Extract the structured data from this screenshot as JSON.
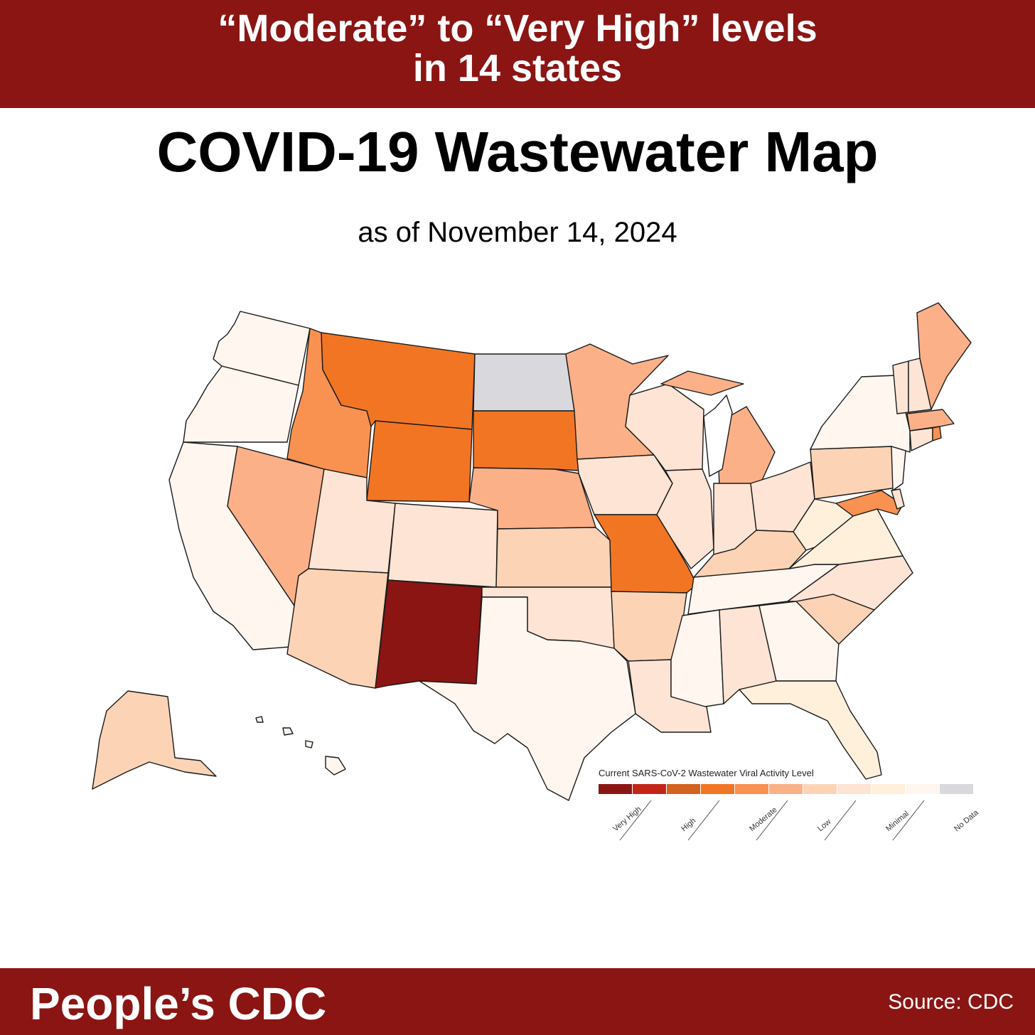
{
  "header": {
    "line1": "“Moderate” to “Very High” levels",
    "line2": "in 14 states"
  },
  "title": "COVID-19 Wastewater Map",
  "subtitle": "as of November 14, 2024",
  "legend": {
    "title": "Current SARS-CoV-2 Wastewater Viral Activity Level",
    "levels": [
      {
        "key": "very-high-1",
        "color": "#8b1513"
      },
      {
        "key": "very-high-2",
        "color": "#c42519"
      },
      {
        "key": "high-1",
        "color": "#d4621f"
      },
      {
        "key": "high-2",
        "color": "#f27524"
      },
      {
        "key": "moderate-1",
        "color": "#f99150"
      },
      {
        "key": "moderate-2",
        "color": "#fbb088"
      },
      {
        "key": "low-1",
        "color": "#fdd3b6"
      },
      {
        "key": "low-2",
        "color": "#fee4d4"
      },
      {
        "key": "minimal-1",
        "color": "#fff0db"
      },
      {
        "key": "minimal-2",
        "color": "#fff6ef"
      },
      {
        "key": "no-data",
        "color": "#d9d8dc"
      }
    ],
    "labels": [
      "Very High",
      "High",
      "Moderate",
      "Low",
      "Minimal",
      "No Data"
    ]
  },
  "states": {
    "WA": "minimal",
    "OR": "minimal",
    "CA": "minimal",
    "NV": "moderate-2",
    "ID": "moderate",
    "MT": "high",
    "WY": "high",
    "UT": "low-2",
    "AZ": "low",
    "CO": "low-2",
    "NM": "very-high",
    "ND": "no-data",
    "SD": "high",
    "NE": "moderate-2",
    "KS": "low",
    "OK": "low-2",
    "TX": "minimal",
    "MN": "moderate-2",
    "IA": "low-2",
    "MO": "high-2",
    "AR": "low",
    "LA": "low-2",
    "WI": "low-2",
    "IL": "low-2",
    "MI": "moderate-2",
    "IN": "low-2",
    "OH": "low-2",
    "KY": "low",
    "TN": "minimal",
    "MS": "minimal",
    "AL": "low-2",
    "GA": "minimal",
    "FL": "minimal-y",
    "SC": "low",
    "NC": "low-2",
    "VA": "minimal-y",
    "WV": "minimal-y",
    "PA": "low",
    "NY": "minimal",
    "MD": "moderate",
    "DE": "low-2",
    "NJ": "minimal",
    "CT": "low-2",
    "RI": "moderate",
    "MA": "moderate-2",
    "VT": "low-2",
    "NH": "low-2",
    "ME": "moderate-2",
    "AK": "low",
    "HI": "minimal"
  },
  "palette": {
    "very-high": "#8b1513",
    "high": "#f27524",
    "high-2": "#f27524",
    "moderate": "#f99150",
    "moderate-2": "#fbb088",
    "low": "#fdd3b6",
    "low-2": "#fee4d4",
    "minimal-y": "#fff0db",
    "minimal": "#fff6ef",
    "no-data": "#d9d8dc"
  },
  "footer": {
    "brand": "People’s CDC",
    "source": "Source: CDC"
  }
}
